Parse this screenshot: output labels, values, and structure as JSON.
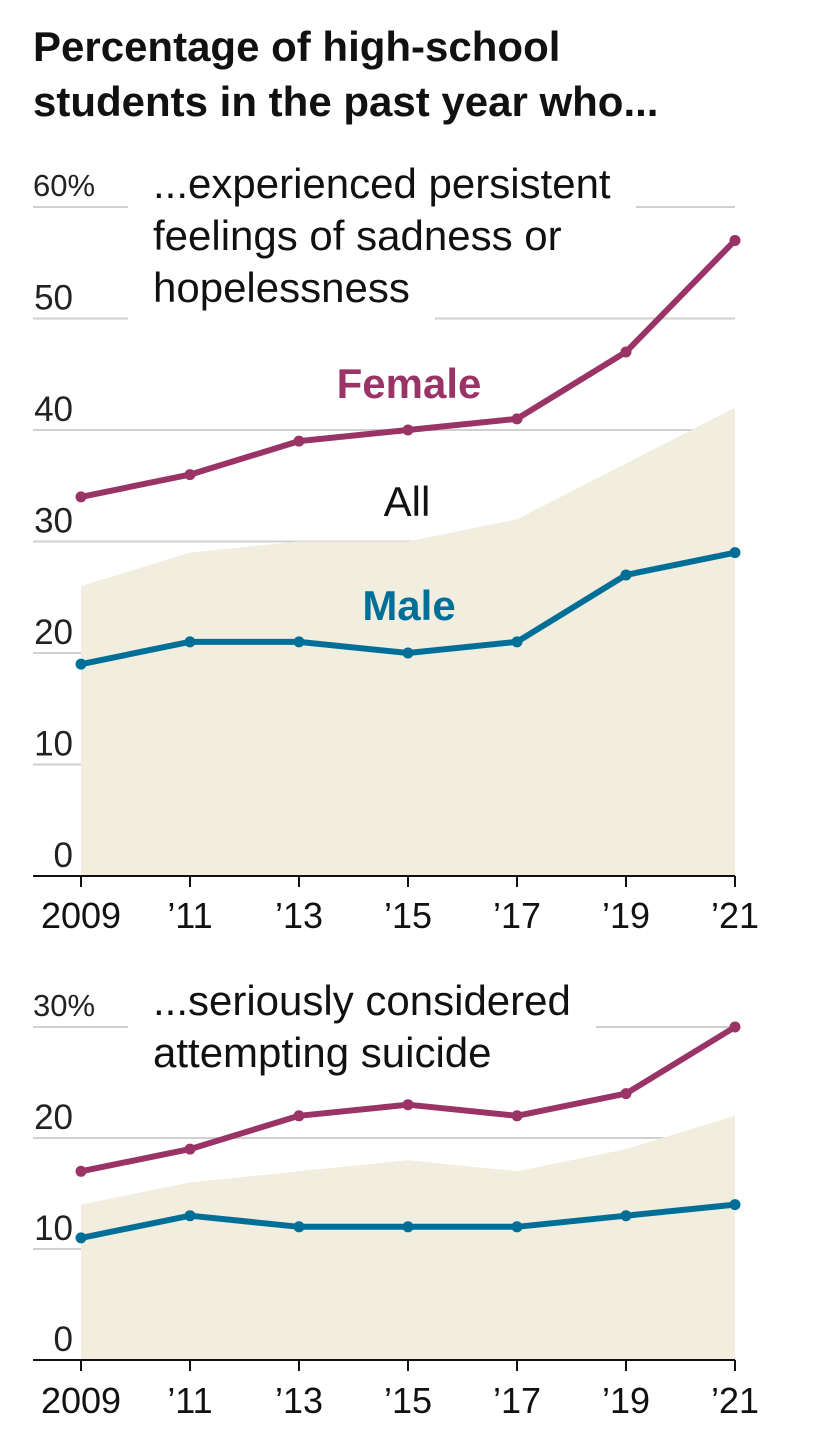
{
  "title": [
    "Percentage of high-school",
    "students in the past year who..."
  ],
  "colors": {
    "grid": "#d0d0d0",
    "axis": "#111111",
    "halo": "#ffffff"
  },
  "chart_data": [
    {
      "type": "line",
      "subtitle": [
        "...experienced persistent",
        "feelings of sadness or",
        "hopelessness"
      ],
      "categories": [
        "2009",
        "’11",
        "’13",
        "’15",
        "’17",
        "’19",
        "’21"
      ],
      "ylim": [
        0,
        60
      ],
      "yticks": [
        0,
        10,
        20,
        30,
        40,
        50,
        60
      ],
      "ytick_labels": [
        "0",
        "10",
        "20",
        "30",
        "40",
        "50",
        "60%"
      ],
      "area": {
        "name": "All",
        "color": "#f1eddf",
        "values": [
          26,
          29,
          30,
          30,
          32,
          37,
          42
        ]
      },
      "lines": [
        {
          "name": "Female",
          "color": "#9a3466",
          "values": [
            34,
            36,
            39,
            40,
            41,
            47,
            57
          ]
        },
        {
          "name": "Male",
          "color": "#006f98",
          "values": [
            19,
            21,
            21,
            20,
            21,
            27,
            29
          ]
        }
      ]
    },
    {
      "type": "line",
      "subtitle": [
        "...seriously considered",
        "attempting suicide"
      ],
      "categories": [
        "2009",
        "’11",
        "’13",
        "’15",
        "’17",
        "’19",
        "’21"
      ],
      "ylim": [
        0,
        30
      ],
      "yticks": [
        0,
        10,
        20,
        30
      ],
      "ytick_labels": [
        "0",
        "10",
        "20",
        "30%"
      ],
      "area": {
        "color": "#f1eddf",
        "values": [
          14,
          16,
          17,
          18,
          17,
          19,
          22
        ]
      },
      "lines": [
        {
          "color": "#9a3466",
          "values": [
            17,
            19,
            22,
            23,
            22,
            24,
            30
          ]
        },
        {
          "color": "#006f98",
          "values": [
            11,
            13,
            12,
            12,
            12,
            13,
            14
          ]
        }
      ]
    }
  ]
}
